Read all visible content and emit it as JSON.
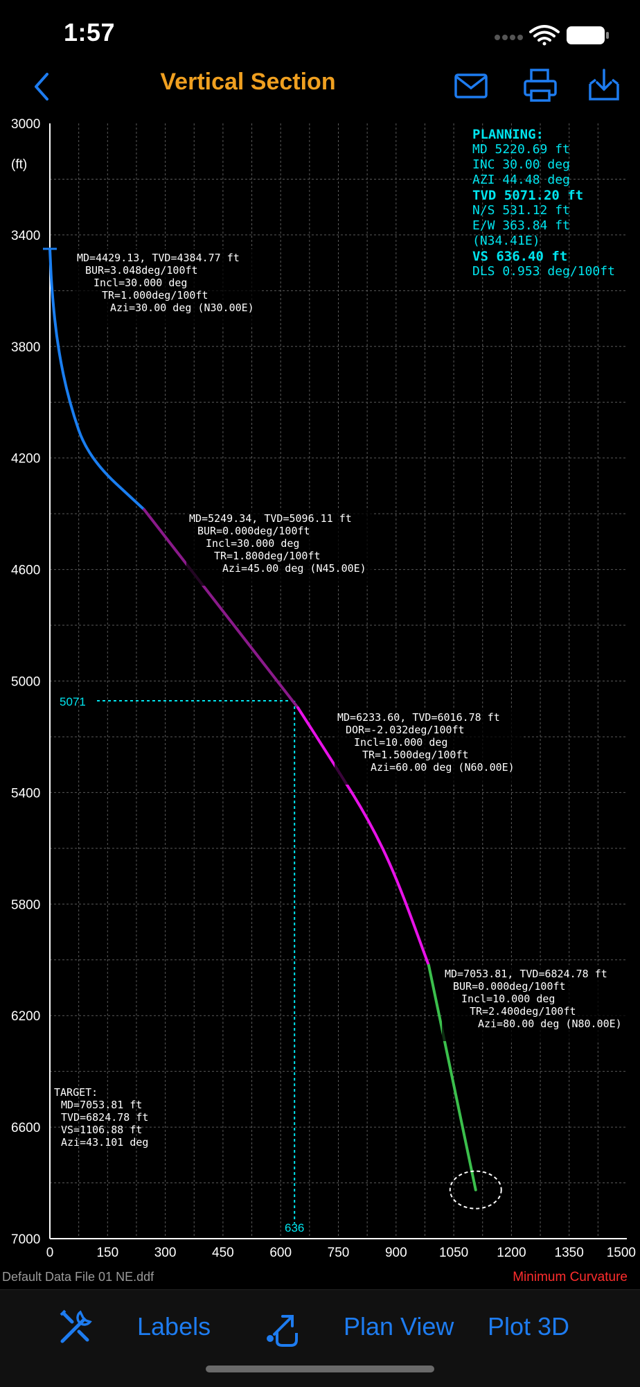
{
  "status": {
    "time": "1:57"
  },
  "nav": {
    "title": "Vertical Section",
    "back_icon": "chevron-left-icon",
    "actions": [
      "mail-icon",
      "printer-icon",
      "export-icon"
    ]
  },
  "colors": {
    "accent": "#1e7cf0",
    "title": "#f0a020",
    "cyan": "#00e5ef",
    "red": "#ff2d2d"
  },
  "y_unit": "(ft)",
  "planning": {
    "header": "PLANNING:",
    "md": "MD 5220.69 ft",
    "inc": "INC 30.00 deg",
    "azi": "AZI 44.48 deg",
    "tvd": "TVD 5071.20 ft",
    "ns": "N/S 531.12 ft",
    "ew": "E/W 363.84 ft",
    "dir": "(N34.41E)",
    "vs": "VS 636.40 ft",
    "dls": "DLS 0.953 deg/100ft"
  },
  "cursor": {
    "tvd_label": "5071",
    "vs_label": "636",
    "tvd": 5071,
    "vs": 636
  },
  "target": {
    "title": "TARGET:",
    "md": "MD=7053.81 ft",
    "tvd": "TVD=6824.78 ft",
    "vs": "VS=1106.88 ft",
    "azi": "Azi=43.101 deg"
  },
  "annotations": [
    {
      "l1": "MD=4429.13, TVD=4384.77 ft",
      "l2": "BUR=3.048deg/100ft",
      "l3": "Incl=30.000 deg",
      "l4": "TR=1.000deg/100ft",
      "l5": "Azi=30.00 deg (N30.00E)"
    },
    {
      "l1": "MD=5249.34, TVD=5096.11 ft",
      "l2": "BUR=0.000deg/100ft",
      "l3": "Incl=30.000 deg",
      "l4": "TR=1.800deg/100ft",
      "l5": "Azi=45.00 deg (N45.00E)"
    },
    {
      "l1": "MD=6233.60, TVD=6016.78 ft",
      "l2": "DOR=-2.032deg/100ft",
      "l3": "Incl=10.000 deg",
      "l4": "TR=1.500deg/100ft",
      "l5": "Azi=60.00 deg (N60.00E)"
    },
    {
      "l1": "MD=7053.81, TVD=6824.78 ft",
      "l2": "BUR=0.000deg/100ft",
      "l3": "Incl=10.000 deg",
      "l4": "TR=2.400deg/100ft",
      "l5": "Azi=80.00 deg (N80.00E)"
    }
  ],
  "chart_data": {
    "type": "line",
    "x_range": [
      0,
      1500
    ],
    "y_range": [
      3000,
      7000
    ],
    "y_inverted": true,
    "x_ticks": [
      "0",
      "150",
      "300",
      "450",
      "600",
      "750",
      "900",
      "1050",
      "1200",
      "1350",
      "1500"
    ],
    "y_ticks": [
      "3000",
      "3400",
      "3800",
      "4200",
      "4600",
      "5000",
      "5400",
      "5800",
      "6200",
      "6600",
      "7000"
    ],
    "grid": true,
    "series": [
      {
        "color": "#1a7ef0",
        "points": [
          [
            0,
            3450
          ],
          [
            5,
            3600
          ],
          [
            20,
            3800
          ],
          [
            50,
            4000
          ],
          [
            100,
            4200
          ],
          [
            245,
            4385
          ]
        ]
      },
      {
        "color": "#8a1a8a",
        "points": [
          [
            245,
            4385
          ],
          [
            645,
            5096
          ]
        ]
      },
      {
        "color": "#e812e8",
        "points": [
          [
            645,
            5096
          ],
          [
            740,
            5300
          ],
          [
            830,
            5500
          ],
          [
            900,
            5700
          ],
          [
            985,
            6020
          ]
        ]
      },
      {
        "color": "#3bbf4c",
        "points": [
          [
            985,
            6020
          ],
          [
            1107,
            6825
          ]
        ]
      }
    ],
    "target_point": [
      1107,
      6825
    ]
  },
  "footer": {
    "file": "Default Data File 01 NE.ddf",
    "method": "Minimum Curvature"
  },
  "toolbar": {
    "labels": "Labels",
    "plan_view": "Plan View",
    "plot_3d": "Plot 3D"
  }
}
